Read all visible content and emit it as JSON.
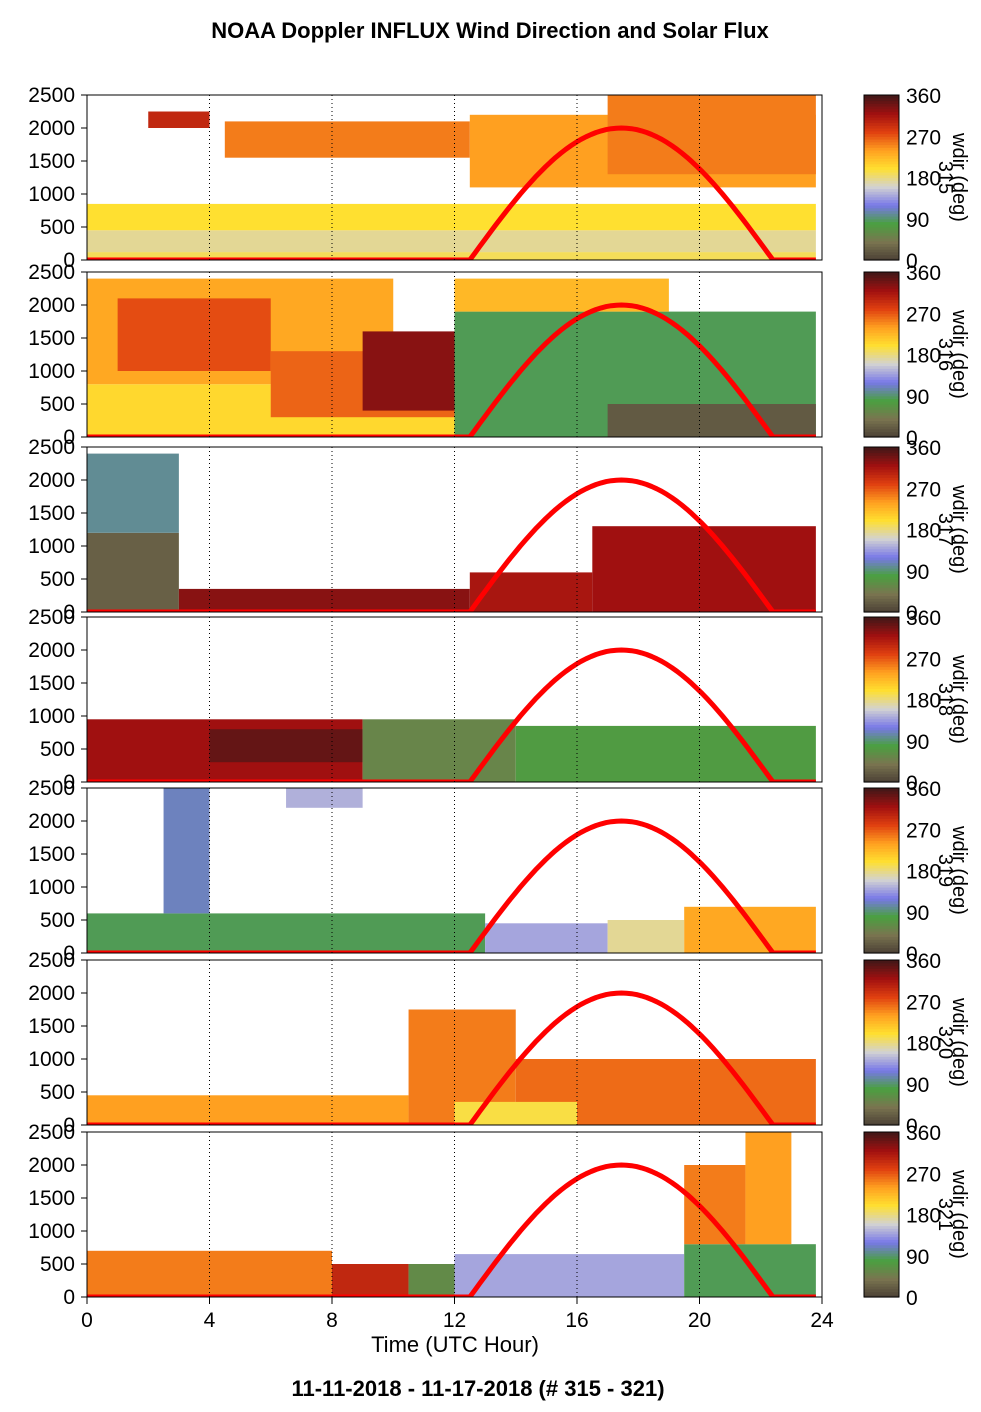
{
  "title": "NOAA Doppler INFLUX Wind Direction and Solar Flux",
  "footer": "11-11-2018 - 11-17-2018   (# 315 - 321)",
  "x_axis_label": "Time (UTC Hour)",
  "colorbar_label": "wdir (deg)",
  "colorbar_ticks": [
    "0",
    "90",
    "180",
    "270",
    "360"
  ],
  "colorbar_day_labels": [
    "315",
    "316",
    "317",
    "318",
    "319",
    "320",
    "321"
  ],
  "palette": [
    "#4a3f35",
    "#7a7450",
    "#4aa040",
    "#7878e8",
    "#d2d2d2",
    "#ffe030",
    "#ffa020",
    "#e04010",
    "#a01010",
    "#401818"
  ],
  "sun_color": "#ff0000",
  "chart_data": {
    "type": "heatmap",
    "x_range": [
      0,
      24
    ],
    "y_range": [
      0,
      2500
    ],
    "x_ticks": [
      0,
      4,
      8,
      12,
      16,
      20,
      24
    ],
    "y_ticks": [
      0,
      500,
      1000,
      1500,
      2000,
      2500
    ],
    "vertical_grid_lines": [
      4,
      8,
      12,
      16,
      20
    ],
    "solar_flux_curve": {
      "sunrise_hour": 12.5,
      "sunset_hour": 22.4,
      "peak_hour": 17.5,
      "peak_value": 2000
    },
    "panels": [
      {
        "day": "315",
        "layers": [
          {
            "start": 0,
            "end": 23.8,
            "bottom": 0,
            "top": 120,
            "wdir": 190
          },
          {
            "start": 0,
            "end": 23.8,
            "bottom": 120,
            "top": 450,
            "wdir": 175
          },
          {
            "start": 0,
            "end": 23.8,
            "bottom": 450,
            "top": 850,
            "wdir": 200
          },
          {
            "start": 2.0,
            "end": 4.0,
            "bottom": 2000,
            "top": 2250,
            "wdir": 300
          },
          {
            "start": 4.5,
            "end": 12.5,
            "bottom": 1550,
            "top": 2100,
            "wdir": 255
          },
          {
            "start": 12.5,
            "end": 23.8,
            "bottom": 1100,
            "top": 2200,
            "wdir": 240
          },
          {
            "start": 17.0,
            "end": 23.8,
            "bottom": 1300,
            "top": 2500,
            "wdir": 255
          }
        ]
      },
      {
        "day": "316",
        "layers": [
          {
            "start": 0,
            "end": 12.0,
            "bottom": 0,
            "top": 800,
            "wdir": 205
          },
          {
            "start": 0,
            "end": 10.0,
            "bottom": 800,
            "top": 2400,
            "wdir": 235
          },
          {
            "start": 1.0,
            "end": 6.0,
            "bottom": 1000,
            "top": 2100,
            "wdir": 275
          },
          {
            "start": 6.0,
            "end": 12.0,
            "bottom": 300,
            "top": 1300,
            "wdir": 265
          },
          {
            "start": 9.0,
            "end": 14.0,
            "bottom": 400,
            "top": 1600,
            "wdir": 330
          },
          {
            "start": 12.0,
            "end": 23.8,
            "bottom": 0,
            "top": 1900,
            "wdir": 85
          },
          {
            "start": 12.0,
            "end": 19.0,
            "bottom": 1900,
            "top": 2400,
            "wdir": 225
          },
          {
            "start": 17.0,
            "end": 23.8,
            "bottom": 0,
            "top": 500,
            "wdir": 20
          }
        ]
      },
      {
        "day": "317",
        "layers": [
          {
            "start": 0,
            "end": 3.0,
            "bottom": 0,
            "top": 1200,
            "wdir": 25
          },
          {
            "start": 0,
            "end": 3.0,
            "bottom": 1200,
            "top": 2400,
            "wdir": 100
          },
          {
            "start": 3.0,
            "end": 12.5,
            "bottom": 0,
            "top": 350,
            "wdir": 330
          },
          {
            "start": 12.5,
            "end": 16.5,
            "bottom": 0,
            "top": 600,
            "wdir": 315
          },
          {
            "start": 16.5,
            "end": 23.8,
            "bottom": 0,
            "top": 1300,
            "wdir": 320
          }
        ]
      },
      {
        "day": "318",
        "layers": [
          {
            "start": 0,
            "end": 9.0,
            "bottom": 0,
            "top": 950,
            "wdir": 320
          },
          {
            "start": 4.0,
            "end": 9.0,
            "bottom": 300,
            "top": 800,
            "wdir": 345
          },
          {
            "start": 9.0,
            "end": 14.0,
            "bottom": 0,
            "top": 950,
            "wdir": 55
          },
          {
            "start": 14.0,
            "end": 23.8,
            "bottom": 0,
            "top": 850,
            "wdir": 75
          }
        ]
      },
      {
        "day": "319",
        "layers": [
          {
            "start": 0,
            "end": 13.0,
            "bottom": 0,
            "top": 600,
            "wdir": 85
          },
          {
            "start": 2.5,
            "end": 4.0,
            "bottom": 600,
            "top": 2500,
            "wdir": 110
          },
          {
            "start": 6.5,
            "end": 9.0,
            "bottom": 2200,
            "top": 2500,
            "wdir": 145
          },
          {
            "start": 13.0,
            "end": 17.0,
            "bottom": 0,
            "top": 450,
            "wdir": 140
          },
          {
            "start": 17.0,
            "end": 19.5,
            "bottom": 0,
            "top": 500,
            "wdir": 175
          },
          {
            "start": 19.5,
            "end": 23.8,
            "bottom": 0,
            "top": 700,
            "wdir": 235
          }
        ]
      },
      {
        "day": "320",
        "layers": [
          {
            "start": 0,
            "end": 10.5,
            "bottom": 0,
            "top": 450,
            "wdir": 240
          },
          {
            "start": 10.5,
            "end": 14.0,
            "bottom": 0,
            "top": 1750,
            "wdir": 255
          },
          {
            "start": 14.0,
            "end": 23.8,
            "bottom": 0,
            "top": 1000,
            "wdir": 262
          },
          {
            "start": 12.0,
            "end": 16.0,
            "bottom": 0,
            "top": 350,
            "wdir": 195
          }
        ]
      },
      {
        "day": "321",
        "layers": [
          {
            "start": 0,
            "end": 8.0,
            "bottom": 0,
            "top": 700,
            "wdir": 255
          },
          {
            "start": 8.0,
            "end": 10.5,
            "bottom": 0,
            "top": 500,
            "wdir": 300
          },
          {
            "start": 10.5,
            "end": 12.0,
            "bottom": 0,
            "top": 500,
            "wdir": 60
          },
          {
            "start": 12.0,
            "end": 19.5,
            "bottom": 0,
            "top": 650,
            "wdir": 140
          },
          {
            "start": 19.5,
            "end": 23.8,
            "bottom": 0,
            "top": 800,
            "wdir": 85
          },
          {
            "start": 19.5,
            "end": 21.5,
            "bottom": 800,
            "top": 2000,
            "wdir": 255
          },
          {
            "start": 21.5,
            "end": 23.0,
            "bottom": 800,
            "top": 2500,
            "wdir": 240
          }
        ]
      }
    ]
  }
}
